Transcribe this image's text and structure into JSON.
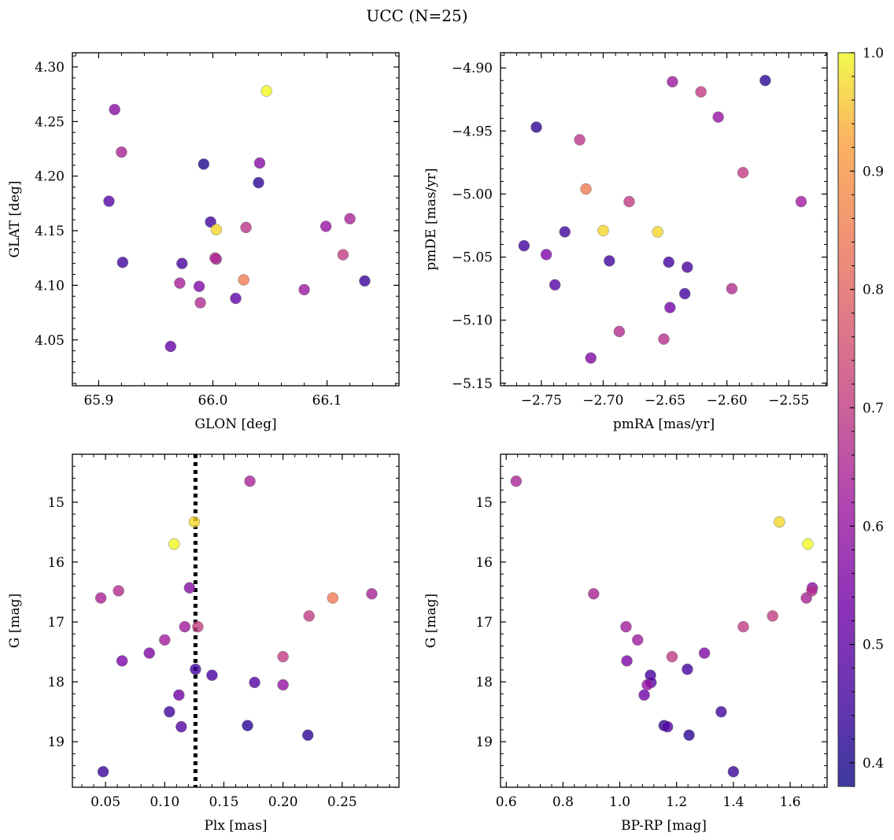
{
  "figure": {
    "title": "UCC (N=25)"
  },
  "colorbar": {
    "min": 0.38,
    "max": 1.0,
    "ticks": [
      0.4,
      0.5,
      0.6,
      0.7,
      0.8,
      0.9,
      1.0
    ],
    "tick_labels": [
      "0.4",
      "0.5",
      "0.6",
      "0.7",
      "0.8",
      "0.9",
      "1.0"
    ],
    "colormap": "plasma"
  },
  "chart_data": [
    {
      "type": "scatter",
      "title": "",
      "xlabel": "GLON [deg]",
      "ylabel": "GLAT [deg]",
      "xlim": [
        65.877,
        66.163
      ],
      "ylim": [
        4.008,
        4.313
      ],
      "yinvert": false,
      "xticks": [
        65.9,
        66.0,
        66.1
      ],
      "xtick_labels": [
        "65.9",
        "66.0",
        "66.1"
      ],
      "yticks": [
        4.05,
        4.1,
        4.15,
        4.2,
        4.25,
        4.3
      ],
      "ytick_labels": [
        "4.05",
        "4.10",
        "4.15",
        "4.20",
        "4.25",
        "4.30"
      ],
      "points": [
        {
          "x": 66.047,
          "y": 4.278,
          "c": 1.0
        },
        {
          "x": 65.914,
          "y": 4.261,
          "c": 0.57
        },
        {
          "x": 65.92,
          "y": 4.222,
          "c": 0.64
        },
        {
          "x": 65.992,
          "y": 4.211,
          "c": 0.4
        },
        {
          "x": 66.041,
          "y": 4.212,
          "c": 0.57
        },
        {
          "x": 66.04,
          "y": 4.194,
          "c": 0.42
        },
        {
          "x": 65.909,
          "y": 4.177,
          "c": 0.48
        },
        {
          "x": 66.12,
          "y": 4.161,
          "c": 0.64
        },
        {
          "x": 65.998,
          "y": 4.158,
          "c": 0.45
        },
        {
          "x": 66.003,
          "y": 4.151,
          "c": 0.97
        },
        {
          "x": 66.029,
          "y": 4.153,
          "c": 0.68
        },
        {
          "x": 66.099,
          "y": 4.154,
          "c": 0.6
        },
        {
          "x": 66.114,
          "y": 4.128,
          "c": 0.7
        },
        {
          "x": 66.002,
          "y": 4.125,
          "c": 0.66
        },
        {
          "x": 66.003,
          "y": 4.124,
          "c": 0.62
        },
        {
          "x": 65.921,
          "y": 4.121,
          "c": 0.45
        },
        {
          "x": 65.973,
          "y": 4.12,
          "c": 0.46
        },
        {
          "x": 66.027,
          "y": 4.105,
          "c": 0.85
        },
        {
          "x": 66.133,
          "y": 4.104,
          "c": 0.44
        },
        {
          "x": 65.971,
          "y": 4.102,
          "c": 0.63
        },
        {
          "x": 65.988,
          "y": 4.099,
          "c": 0.56
        },
        {
          "x": 66.08,
          "y": 4.096,
          "c": 0.61
        },
        {
          "x": 66.02,
          "y": 4.088,
          "c": 0.5
        },
        {
          "x": 65.989,
          "y": 4.084,
          "c": 0.66
        },
        {
          "x": 65.963,
          "y": 4.044,
          "c": 0.51
        }
      ]
    },
    {
      "type": "scatter",
      "title": "",
      "xlabel": "pmRA [mas/yr]",
      "ylabel": "pmDE [mas/yr]",
      "xlim": [
        -2.783,
        -2.519
      ],
      "ylim": [
        -5.152,
        -4.888
      ],
      "yinvert": false,
      "xticks": [
        -2.75,
        -2.7,
        -2.65,
        -2.6,
        -2.55
      ],
      "xtick_labels": [
        "−2.75",
        "−2.70",
        "−2.65",
        "−2.60",
        "−2.55"
      ],
      "yticks": [
        -5.15,
        -5.1,
        -5.05,
        -5.0,
        -4.95,
        -4.9
      ],
      "ytick_labels": [
        "−5.15",
        "−5.10",
        "−5.05",
        "−5.00",
        "−4.95",
        "−4.90"
      ],
      "points": [
        {
          "x": -2.569,
          "y": -4.91,
          "c": 0.42
        },
        {
          "x": -2.644,
          "y": -4.911,
          "c": 0.61
        },
        {
          "x": -2.621,
          "y": -4.919,
          "c": 0.7
        },
        {
          "x": -2.607,
          "y": -4.939,
          "c": 0.6
        },
        {
          "x": -2.754,
          "y": -4.947,
          "c": 0.42
        },
        {
          "x": -2.719,
          "y": -4.957,
          "c": 0.68
        },
        {
          "x": -2.587,
          "y": -4.983,
          "c": 0.7
        },
        {
          "x": -2.714,
          "y": -4.996,
          "c": 0.85
        },
        {
          "x": -2.54,
          "y": -5.006,
          "c": 0.62
        },
        {
          "x": -2.679,
          "y": -5.006,
          "c": 0.7
        },
        {
          "x": -2.7,
          "y": -5.029,
          "c": 0.97
        },
        {
          "x": -2.656,
          "y": -5.03,
          "c": 0.97
        },
        {
          "x": -2.731,
          "y": -5.03,
          "c": 0.45
        },
        {
          "x": -2.764,
          "y": -5.041,
          "c": 0.45
        },
        {
          "x": -2.746,
          "y": -5.048,
          "c": 0.55
        },
        {
          "x": -2.695,
          "y": -5.053,
          "c": 0.45
        },
        {
          "x": -2.647,
          "y": -5.054,
          "c": 0.45
        },
        {
          "x": -2.632,
          "y": -5.058,
          "c": 0.46
        },
        {
          "x": -2.739,
          "y": -5.072,
          "c": 0.48
        },
        {
          "x": -2.596,
          "y": -5.075,
          "c": 0.66
        },
        {
          "x": -2.634,
          "y": -5.079,
          "c": 0.45
        },
        {
          "x": -2.646,
          "y": -5.09,
          "c": 0.53
        },
        {
          "x": -2.687,
          "y": -5.109,
          "c": 0.66
        },
        {
          "x": -2.651,
          "y": -5.115,
          "c": 0.67
        },
        {
          "x": -2.71,
          "y": -5.13,
          "c": 0.56
        }
      ]
    },
    {
      "type": "scatter",
      "title": "",
      "xlabel": "Plx [mas]",
      "ylabel": "G [mag]",
      "xlim": [
        0.022,
        0.298
      ],
      "ylim": [
        14.2,
        19.76
      ],
      "yinvert": true,
      "xticks": [
        0.05,
        0.1,
        0.15,
        0.2,
        0.25
      ],
      "xtick_labels": [
        "0.05",
        "0.10",
        "0.15",
        "0.20",
        "0.25"
      ],
      "yticks": [
        15,
        16,
        17,
        18,
        19
      ],
      "ytick_labels": [
        "15",
        "16",
        "17",
        "18",
        "19"
      ],
      "vline": {
        "x": 0.126,
        "style": "dotted",
        "color": "#000000"
      },
      "points": [
        {
          "x": 0.172,
          "y": 14.65,
          "c": 0.64
        },
        {
          "x": 0.125,
          "y": 15.33,
          "c": 0.97
        },
        {
          "x": 0.108,
          "y": 15.7,
          "c": 1.0
        },
        {
          "x": 0.121,
          "y": 16.43,
          "c": 0.57
        },
        {
          "x": 0.061,
          "y": 16.48,
          "c": 0.66
        },
        {
          "x": 0.275,
          "y": 16.53,
          "c": 0.64
        },
        {
          "x": 0.046,
          "y": 16.6,
          "c": 0.64
        },
        {
          "x": 0.242,
          "y": 16.6,
          "c": 0.85
        },
        {
          "x": 0.222,
          "y": 16.9,
          "c": 0.7
        },
        {
          "x": 0.117,
          "y": 17.08,
          "c": 0.62
        },
        {
          "x": 0.128,
          "y": 17.08,
          "c": 0.7
        },
        {
          "x": 0.1,
          "y": 17.3,
          "c": 0.62
        },
        {
          "x": 0.087,
          "y": 17.52,
          "c": 0.56
        },
        {
          "x": 0.2,
          "y": 17.58,
          "c": 0.7
        },
        {
          "x": 0.064,
          "y": 17.65,
          "c": 0.55
        },
        {
          "x": 0.126,
          "y": 17.79,
          "c": 0.45
        },
        {
          "x": 0.14,
          "y": 17.89,
          "c": 0.46
        },
        {
          "x": 0.176,
          "y": 18.01,
          "c": 0.48
        },
        {
          "x": 0.2,
          "y": 18.05,
          "c": 0.6
        },
        {
          "x": 0.112,
          "y": 18.22,
          "c": 0.53
        },
        {
          "x": 0.104,
          "y": 18.5,
          "c": 0.45
        },
        {
          "x": 0.17,
          "y": 18.73,
          "c": 0.42
        },
        {
          "x": 0.114,
          "y": 18.75,
          "c": 0.48
        },
        {
          "x": 0.221,
          "y": 18.89,
          "c": 0.42
        },
        {
          "x": 0.048,
          "y": 19.5,
          "c": 0.44
        }
      ]
    },
    {
      "type": "scatter",
      "title": "",
      "xlabel": "BP-RP [mag]",
      "ylabel": "G [mag]",
      "xlim": [
        0.58,
        1.73
      ],
      "ylim": [
        14.2,
        19.76
      ],
      "yinvert": true,
      "xticks": [
        0.6,
        0.8,
        1.0,
        1.2,
        1.4,
        1.6
      ],
      "xtick_labels": [
        "0.6",
        "0.8",
        "1.0",
        "1.2",
        "1.4",
        "1.6"
      ],
      "yticks": [
        15,
        16,
        17,
        18,
        19
      ],
      "ytick_labels": [
        "15",
        "16",
        "17",
        "18",
        "19"
      ],
      "points": [
        {
          "x": 0.635,
          "y": 14.65,
          "c": 0.64
        },
        {
          "x": 1.562,
          "y": 15.33,
          "c": 0.97
        },
        {
          "x": 1.662,
          "y": 15.7,
          "c": 1.0
        },
        {
          "x": 1.678,
          "y": 16.43,
          "c": 0.57
        },
        {
          "x": 1.676,
          "y": 16.48,
          "c": 0.66
        },
        {
          "x": 0.908,
          "y": 16.53,
          "c": 0.64
        },
        {
          "x": 1.657,
          "y": 16.6,
          "c": 0.64
        },
        {
          "x": 1.538,
          "y": 16.9,
          "c": 0.7
        },
        {
          "x": 1.022,
          "y": 17.08,
          "c": 0.62
        },
        {
          "x": 1.435,
          "y": 17.08,
          "c": 0.7
        },
        {
          "x": 1.063,
          "y": 17.3,
          "c": 0.62
        },
        {
          "x": 1.298,
          "y": 17.52,
          "c": 0.56
        },
        {
          "x": 1.184,
          "y": 17.58,
          "c": 0.7
        },
        {
          "x": 1.025,
          "y": 17.65,
          "c": 0.55
        },
        {
          "x": 1.238,
          "y": 17.79,
          "c": 0.45
        },
        {
          "x": 1.108,
          "y": 17.89,
          "c": 0.46
        },
        {
          "x": 1.11,
          "y": 18.01,
          "c": 0.48
        },
        {
          "x": 1.097,
          "y": 18.05,
          "c": 0.6
        },
        {
          "x": 1.086,
          "y": 18.22,
          "c": 0.53
        },
        {
          "x": 1.357,
          "y": 18.5,
          "c": 0.45
        },
        {
          "x": 1.156,
          "y": 18.73,
          "c": 0.42
        },
        {
          "x": 1.168,
          "y": 18.75,
          "c": 0.48
        },
        {
          "x": 1.244,
          "y": 18.89,
          "c": 0.42
        },
        {
          "x": 1.4,
          "y": 19.5,
          "c": 0.44
        }
      ]
    }
  ]
}
